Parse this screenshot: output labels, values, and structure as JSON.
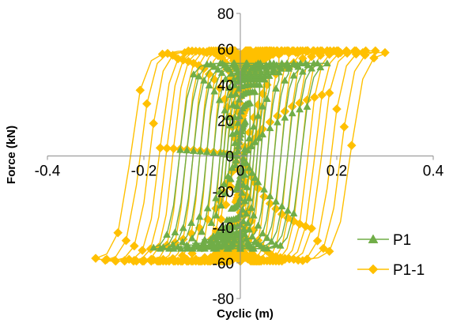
{
  "chart_data": {
    "type": "scatter",
    "title": "",
    "xlabel": "Cyclic (m)",
    "ylabel": "Force (kN)",
    "xlim": [
      -0.4,
      0.4
    ],
    "ylim": [
      -80,
      80
    ],
    "xticks": [
      -0.4,
      -0.2,
      0,
      0.2,
      0.4
    ],
    "yticks": [
      -80,
      -60,
      -40,
      -20,
      0,
      20,
      40,
      60,
      80
    ],
    "xtick_labels": [
      "-0.4",
      "-0.2",
      "0",
      "0.2",
      "0.4"
    ],
    "ytick_labels": [
      "-80",
      "-60",
      "-40",
      "-20",
      "0",
      "20",
      "40",
      "60",
      "80"
    ],
    "grid": false,
    "legend_position": "bottom-right",
    "series": [
      {
        "name": "P1",
        "color": "#70AD47",
        "marker": "triangle",
        "cycles": [
          {
            "amp": 0.01,
            "fmax": 22
          },
          {
            "amp": 0.02,
            "fmax": 30
          },
          {
            "amp": 0.03,
            "fmax": 36
          },
          {
            "amp": 0.04,
            "fmax": 40
          },
          {
            "amp": 0.05,
            "fmax": 43
          },
          {
            "amp": 0.06,
            "fmax": 45
          },
          {
            "amp": 0.08,
            "fmax": 47
          },
          {
            "amp": 0.1,
            "fmax": 49
          },
          {
            "amp": 0.12,
            "fmax": 50
          },
          {
            "amp": 0.14,
            "fmax": 51
          },
          {
            "amp": 0.16,
            "fmax": 52
          },
          {
            "amp": 0.18,
            "fmax": 52
          }
        ]
      },
      {
        "name": "P1-1",
        "color": "#FFC000",
        "marker": "diamond",
        "cycles": [
          {
            "amp": 0.01,
            "fmax": 30
          },
          {
            "amp": 0.02,
            "fmax": 40
          },
          {
            "amp": 0.03,
            "fmax": 47
          },
          {
            "amp": 0.04,
            "fmax": 51
          },
          {
            "amp": 0.05,
            "fmax": 54
          },
          {
            "amp": 0.06,
            "fmax": 56
          },
          {
            "amp": 0.08,
            "fmax": 57
          },
          {
            "amp": 0.1,
            "fmax": 58
          },
          {
            "amp": 0.12,
            "fmax": 58
          },
          {
            "amp": 0.14,
            "fmax": 59
          },
          {
            "amp": 0.16,
            "fmax": 59
          },
          {
            "amp": 0.18,
            "fmax": 59
          },
          {
            "amp": 0.2,
            "fmax": 59
          },
          {
            "amp": 0.22,
            "fmax": 59
          },
          {
            "amp": 0.24,
            "fmax": 59
          },
          {
            "amp": 0.26,
            "fmax": 59
          },
          {
            "amp": 0.28,
            "fmax": 59
          },
          {
            "amp": 0.3,
            "fmax": 58
          }
        ]
      }
    ]
  }
}
